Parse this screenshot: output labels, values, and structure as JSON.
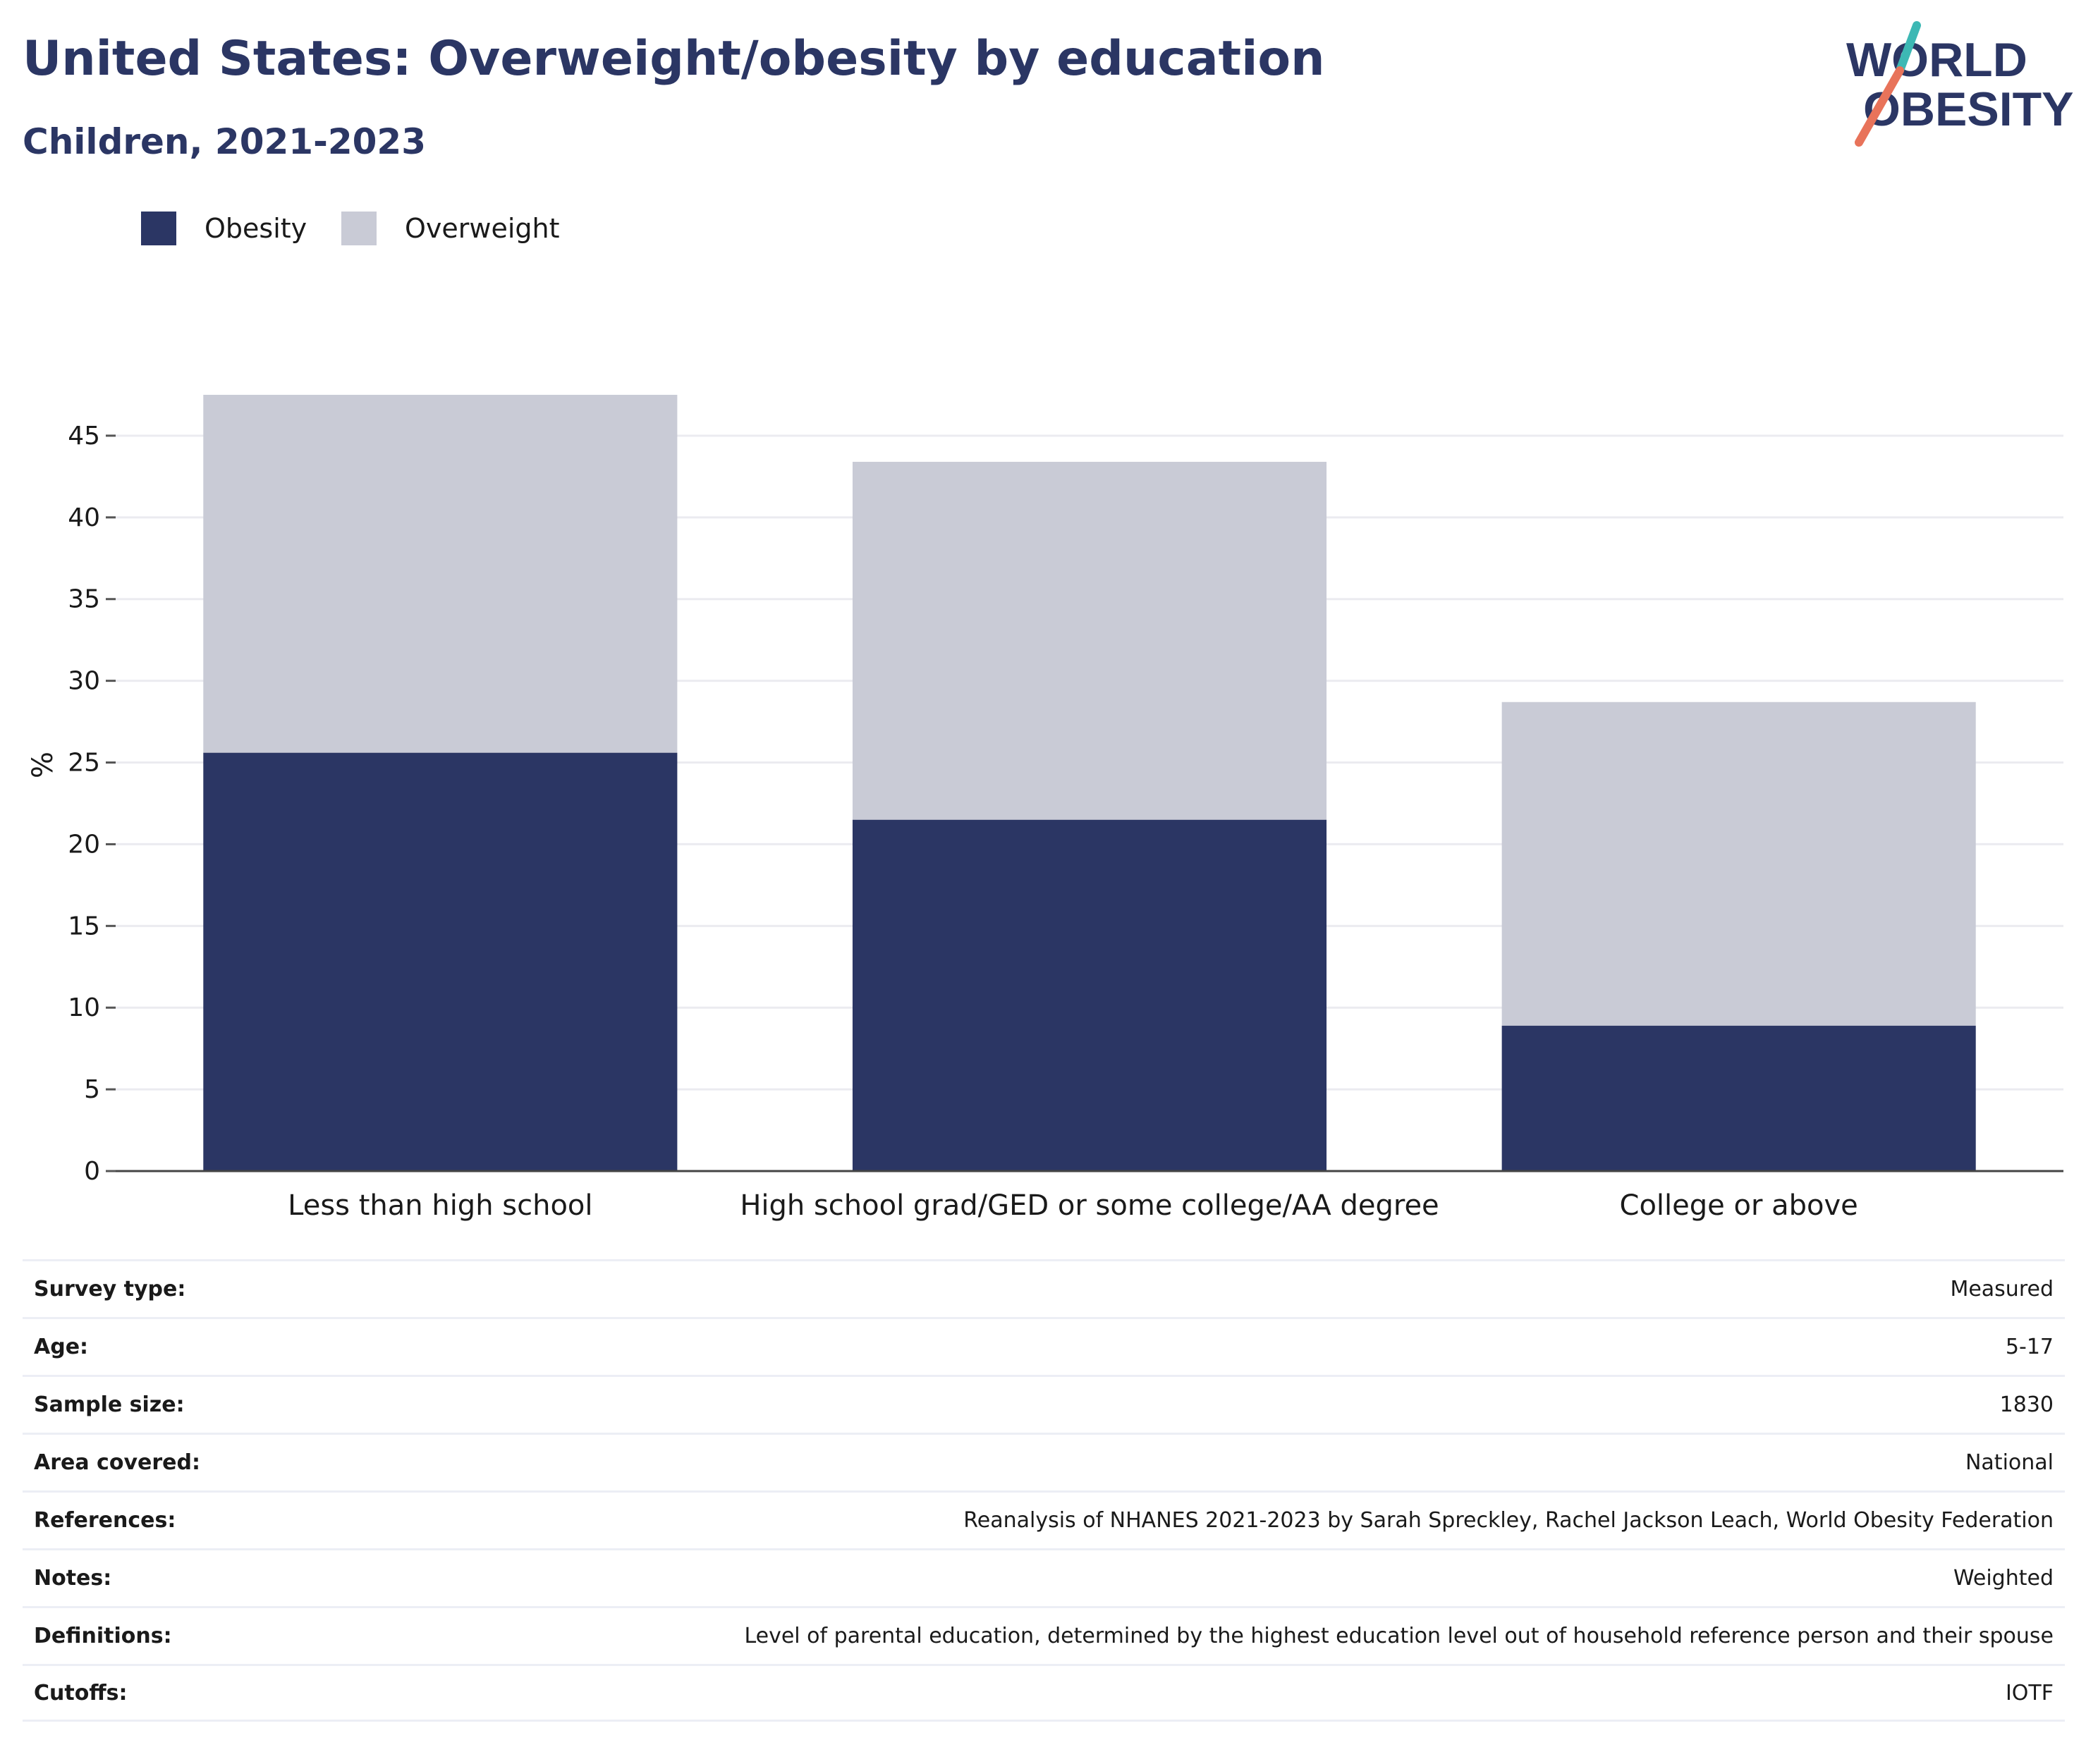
{
  "header": {
    "title": "United States: Overweight/obesity by education",
    "subtitle": "Children, 2021-2023"
  },
  "logo": {
    "line1": "WORLD",
    "line2": "OBESITY"
  },
  "colors": {
    "obesity": "#2b3664",
    "overweight": "#c9cbd6",
    "title": "#2b3664",
    "logo_teal": "#3db8b4",
    "logo_coral": "#e8735a"
  },
  "legend": [
    {
      "label": "Obesity",
      "color": "#2b3664"
    },
    {
      "label": "Overweight",
      "color": "#c9cbd6"
    }
  ],
  "chart_data": {
    "type": "bar",
    "stacked": true,
    "categories": [
      "Less than high school",
      "High school grad/GED or some college/AA degree",
      "College or above"
    ],
    "series": [
      {
        "name": "Obesity",
        "values": [
          25.6,
          21.5,
          8.9
        ]
      },
      {
        "name": "Overweight",
        "values": [
          21.9,
          21.9,
          19.8
        ]
      }
    ],
    "ylabel": "%",
    "xlabel": "",
    "ylim": [
      0,
      47.5
    ],
    "yticks": [
      0,
      5,
      10,
      15,
      20,
      25,
      30,
      35,
      40,
      45
    ],
    "grid": true,
    "legend_position": "top-left"
  },
  "metadata": [
    {
      "key": "Survey type:",
      "value": "Measured"
    },
    {
      "key": "Age:",
      "value": "5-17"
    },
    {
      "key": "Sample size:",
      "value": "1830"
    },
    {
      "key": "Area covered:",
      "value": "National"
    },
    {
      "key": "References:",
      "value": "Reanalysis of NHANES 2021-2023 by Sarah Spreckley, Rachel Jackson Leach, World Obesity Federation"
    },
    {
      "key": "Notes:",
      "value": "Weighted"
    },
    {
      "key": "Definitions:",
      "value": "Level of parental education, determined by the highest education level out of household reference person and their spouse"
    },
    {
      "key": "Cutoffs:",
      "value": "IOTF"
    }
  ]
}
